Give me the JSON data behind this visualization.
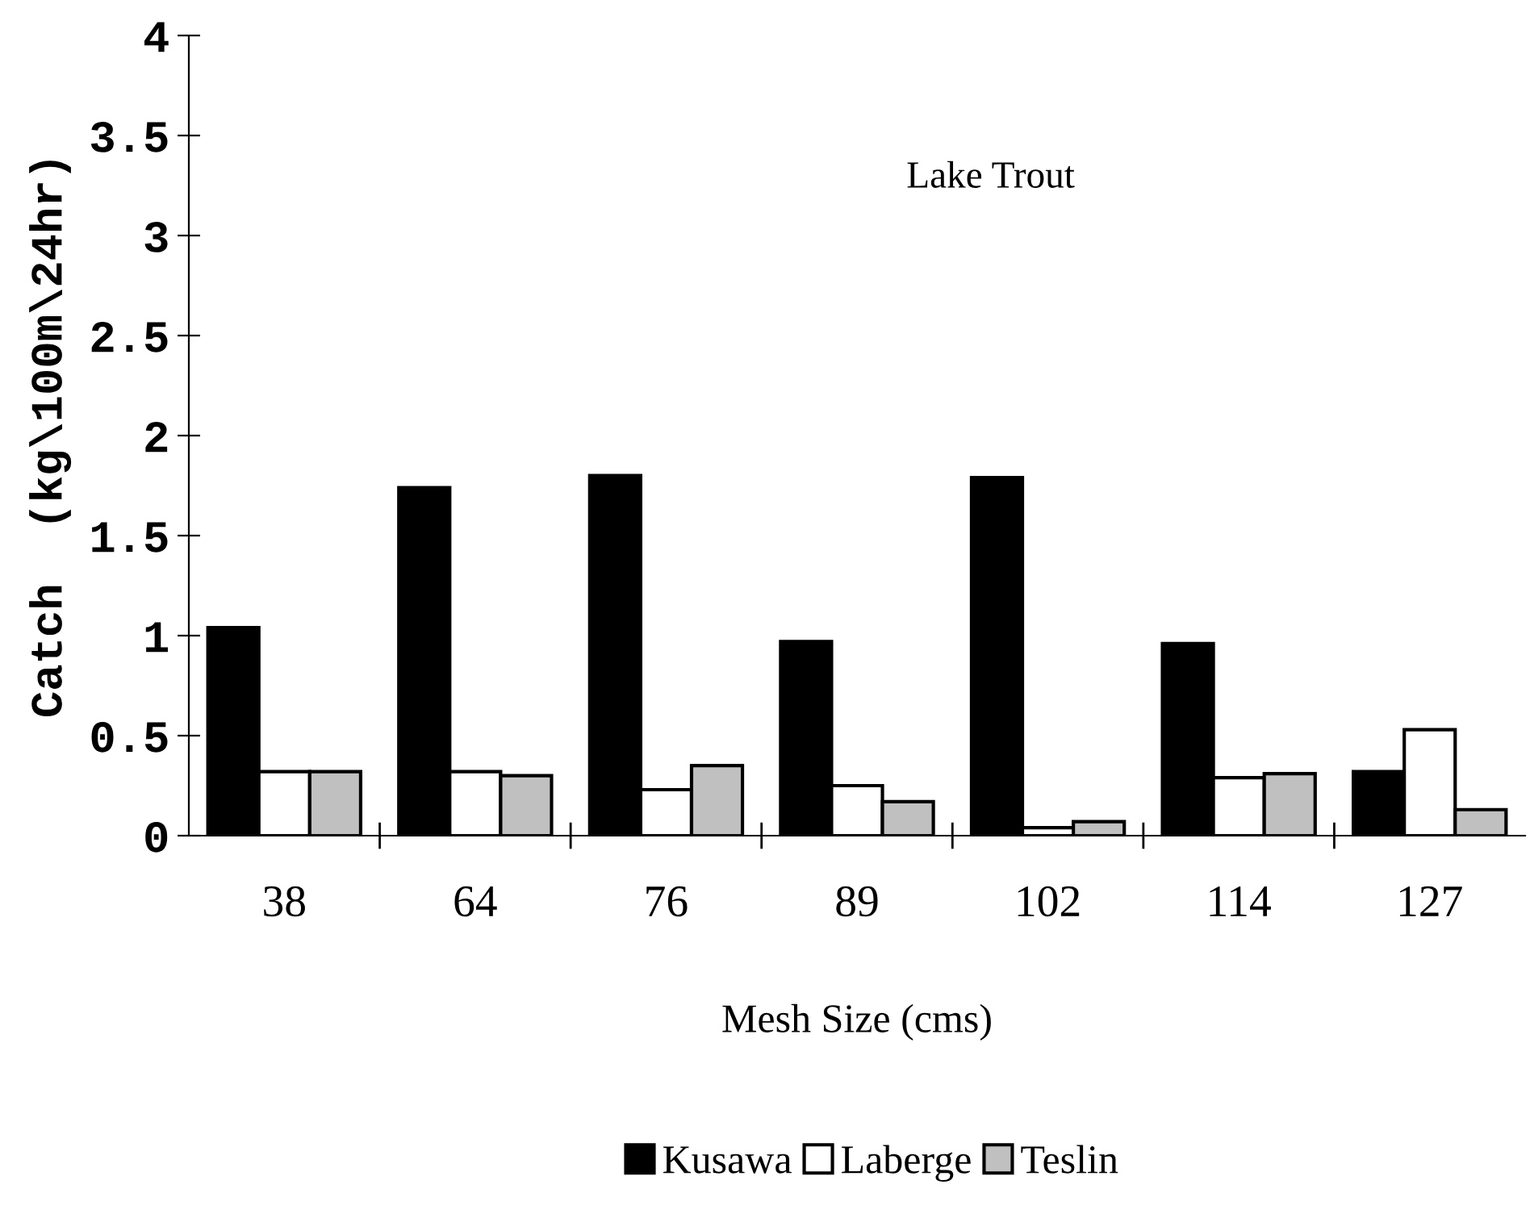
{
  "chart_data": {
    "type": "bar",
    "categories": [
      "38",
      "64",
      "76",
      "89",
      "102",
      "114",
      "127"
    ],
    "series": [
      {
        "name": "Kusawa",
        "color": "#000000",
        "values": [
          1.04,
          1.74,
          1.8,
          0.97,
          1.79,
          0.96,
          0.32
        ]
      },
      {
        "name": "Laberge",
        "color": "#ffffff",
        "values": [
          0.32,
          0.32,
          0.23,
          0.25,
          0.04,
          0.29,
          0.53
        ]
      },
      {
        "name": "Teslin",
        "color": "#c0c0c0",
        "values": [
          0.32,
          0.3,
          0.35,
          0.17,
          0.07,
          0.31,
          0.13
        ]
      }
    ],
    "xlabel": "Mesh Size (cms)",
    "ylabel": "Catch  (kg\\100m\\24hr)",
    "annotations": [
      "Lake Trout"
    ],
    "ylim": [
      0,
      4
    ],
    "yticks": [
      0,
      0.5,
      1,
      1.5,
      2,
      2.5,
      3,
      3.5,
      4
    ],
    "grid": false,
    "legend": "bottom"
  }
}
